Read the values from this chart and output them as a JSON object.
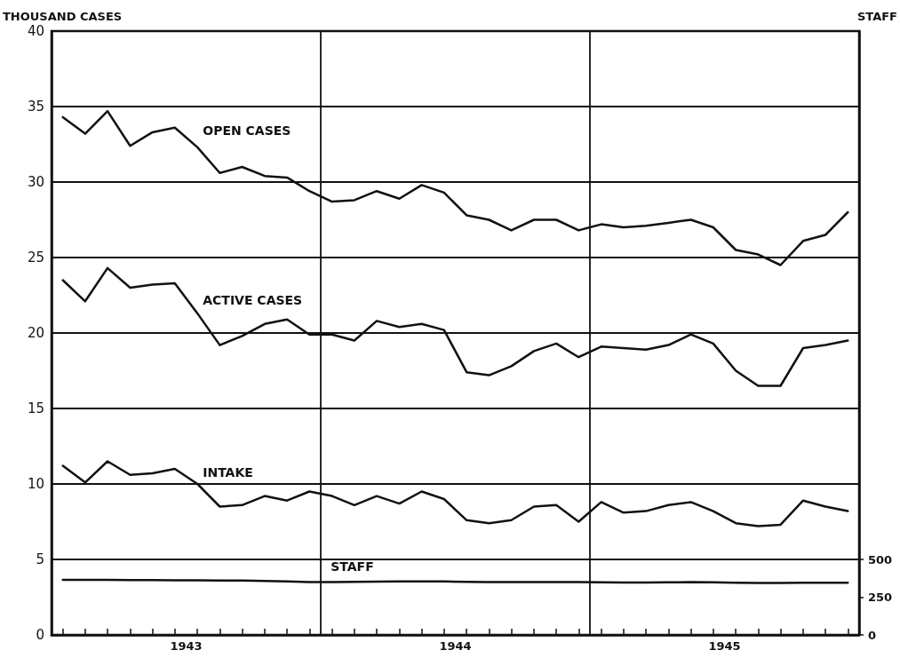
{
  "chart_data": {
    "type": "line",
    "ylabel": "THOUSAND CASES",
    "y2label": "STAFF",
    "x": [
      1943.042,
      1943.125,
      1943.208,
      1943.292,
      1943.375,
      1943.458,
      1943.542,
      1943.625,
      1943.708,
      1943.792,
      1943.875,
      1943.958,
      1944.042,
      1944.125,
      1944.208,
      1944.292,
      1944.375,
      1944.458,
      1944.542,
      1944.625,
      1944.708,
      1944.792,
      1944.875,
      1944.958,
      1945.042,
      1945.125,
      1945.208,
      1945.292,
      1945.375,
      1945.458,
      1945.542,
      1945.625,
      1945.708,
      1945.792,
      1945.875,
      1945.958
    ],
    "series": [
      {
        "name": "OPEN CASES",
        "color": "#111111",
        "values": [
          34.3,
          33.2,
          34.7,
          32.4,
          33.3,
          33.6,
          32.3,
          30.6,
          31.0,
          30.4,
          30.3,
          29.4,
          28.7,
          28.8,
          29.4,
          28.9,
          29.8,
          29.3,
          27.8,
          27.5,
          26.8,
          27.5,
          27.5,
          26.8,
          27.2,
          27.0,
          27.1,
          27.3,
          27.5,
          27.0,
          25.5,
          25.2,
          24.5,
          26.1,
          26.5,
          28.0
        ]
      },
      {
        "name": "ACTIVE CASES",
        "color": "#111111",
        "values": [
          23.5,
          22.1,
          24.3,
          23.0,
          23.2,
          23.3,
          21.3,
          19.2,
          19.8,
          20.6,
          20.9,
          19.9,
          19.9,
          19.5,
          20.8,
          20.4,
          20.6,
          20.2,
          17.4,
          17.2,
          17.8,
          18.8,
          19.3,
          18.4,
          19.1,
          19.0,
          18.9,
          19.2,
          19.9,
          19.3,
          17.5,
          16.5,
          16.5,
          19.0,
          19.2,
          19.5
        ]
      },
      {
        "name": "INTAKE",
        "color": "#111111",
        "values": [
          11.2,
          10.1,
          11.5,
          10.6,
          10.7,
          11.0,
          10.0,
          8.5,
          8.6,
          9.2,
          8.9,
          9.5,
          9.2,
          8.6,
          9.2,
          8.7,
          9.5,
          9.0,
          7.6,
          7.4,
          7.6,
          8.5,
          8.6,
          7.5,
          8.8,
          8.1,
          8.2,
          8.6,
          8.8,
          8.2,
          7.4,
          7.2,
          7.3,
          8.9,
          8.5,
          8.2
        ]
      },
      {
        "name": "STAFF",
        "color": "#111111",
        "axis": "y2",
        "values": [
          365,
          365,
          364,
          363,
          363,
          362,
          362,
          361,
          360,
          358,
          355,
          350,
          350,
          352,
          353,
          354,
          355,
          354,
          352,
          350,
          350,
          350,
          350,
          350,
          348,
          347,
          347,
          348,
          350,
          348,
          346,
          344,
          344,
          345,
          345,
          345
        ]
      }
    ],
    "xlim": [
      1943,
      1946
    ],
    "xticks": [
      {
        "value": 1943.5,
        "label": "1943"
      },
      {
        "value": 1944.5,
        "label": "1944"
      },
      {
        "value": 1945.5,
        "label": "1945"
      },
      {
        "value": 1943.042,
        "label": null
      },
      {
        "value": 1943.125,
        "label": null
      },
      {
        "value": 1943.208,
        "label": null
      },
      {
        "value": 1943.292,
        "label": null
      },
      {
        "value": 1943.375,
        "label": null
      },
      {
        "value": 1943.458,
        "label": null
      },
      {
        "value": 1943.542,
        "label": null
      },
      {
        "value": 1943.625,
        "label": null
      },
      {
        "value": 1943.708,
        "label": null
      },
      {
        "value": 1943.792,
        "label": null
      },
      {
        "value": 1943.875,
        "label": null
      },
      {
        "value": 1943.958,
        "label": null
      },
      {
        "value": 1944.042,
        "label": null
      },
      {
        "value": 1944.125,
        "label": null
      },
      {
        "value": 1944.208,
        "label": null
      },
      {
        "value": 1944.292,
        "label": null
      },
      {
        "value": 1944.375,
        "label": null
      },
      {
        "value": 1944.458,
        "label": null
      },
      {
        "value": 1944.542,
        "label": null
      },
      {
        "value": 1944.625,
        "label": null
      },
      {
        "value": 1944.708,
        "label": null
      },
      {
        "value": 1944.792,
        "label": null
      },
      {
        "value": 1944.875,
        "label": null
      },
      {
        "value": 1944.958,
        "label": null
      },
      {
        "value": 1945.042,
        "label": null
      },
      {
        "value": 1945.125,
        "label": null
      },
      {
        "value": 1945.208,
        "label": null
      },
      {
        "value": 1945.292,
        "label": null
      },
      {
        "value": 1945.375,
        "label": null
      },
      {
        "value": 1945.458,
        "label": null
      },
      {
        "value": 1945.542,
        "label": null
      },
      {
        "value": 1945.625,
        "label": null
      },
      {
        "value": 1945.708,
        "label": null
      },
      {
        "value": 1945.792,
        "label": null
      },
      {
        "value": 1945.875,
        "label": null
      },
      {
        "value": 1945.958,
        "label": null
      }
    ],
    "ylim": [
      0,
      40
    ],
    "yticks": [
      0,
      5,
      10,
      15,
      20,
      25,
      30,
      35,
      40
    ],
    "y2lim": [
      0,
      4000
    ],
    "y2ticks": [
      0,
      250,
      500
    ],
    "ref_lines": [
      {
        "axis": "x",
        "value": 1944,
        "color": "#111111"
      },
      {
        "axis": "x",
        "value": 1945,
        "color": "#111111"
      }
    ],
    "grid": "y",
    "legend": false,
    "marker": "none",
    "line_style": "solid"
  }
}
